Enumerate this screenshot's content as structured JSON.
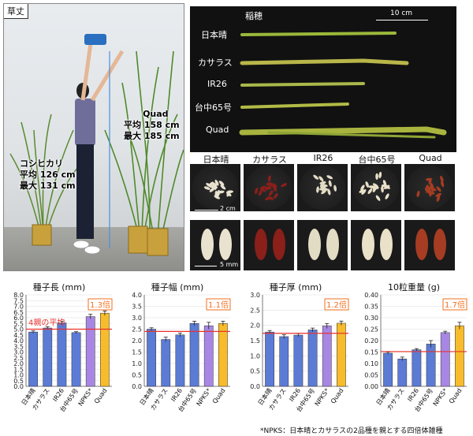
{
  "panels": {
    "plant_height": {
      "label": "草丈",
      "quad": {
        "name": "Quad",
        "avg": "平均 158 cm",
        "max": "最大 185 cm"
      },
      "koshihikari": {
        "name": "コシヒカリ",
        "avg": "平均 126 cm",
        "max": "最大 131 cm"
      }
    },
    "panicle": {
      "label": "稲穂",
      "scale": "10 cm",
      "varieties": [
        "日本晴",
        "カサラス",
        "IR26",
        "台中65号",
        "Quad"
      ]
    },
    "seeds": {
      "titles": [
        "日本晴",
        "カサラス",
        "IR26",
        "台中65号",
        "Quad"
      ],
      "scale_top": "2 cm",
      "scale_bottom": "5 mm",
      "colors": [
        "#e8e2cf",
        "#8b1f1a",
        "#e2dcc4",
        "#e9e1c8",
        "#a63c22"
      ]
    }
  },
  "chart_data": [
    {
      "type": "bar",
      "title": "種子長 (mm)",
      "categories": [
        "日本晴",
        "カサラス",
        "IR26",
        "台中65号",
        "NPKS*",
        "Quad"
      ],
      "values": [
        4.75,
        5.1,
        5.55,
        4.7,
        6.1,
        6.4
      ],
      "errors": [
        0.1,
        0.12,
        0.15,
        0.08,
        0.2,
        0.2
      ],
      "ylim": [
        0.0,
        8.0
      ],
      "yticks": [
        "0.0",
        "0.5",
        "1.0",
        "1.5",
        "2.0",
        "2.5",
        "3.0",
        "3.5",
        "4.0",
        "4.5",
        "5.0",
        "5.5",
        "6.0",
        "6.5",
        "7.0",
        "7.5",
        "8.0"
      ],
      "parent_avg": 5.0,
      "ratio": "1.3倍",
      "annotation": "4親の平均"
    },
    {
      "type": "bar",
      "title": "種子幅 (mm)",
      "categories": [
        "日本晴",
        "カサラス",
        "IR26",
        "台中65号",
        "NPKS*",
        "Quad"
      ],
      "values": [
        2.5,
        2.05,
        2.25,
        2.75,
        2.65,
        2.75
      ],
      "errors": [
        0.06,
        0.1,
        0.08,
        0.1,
        0.15,
        0.1
      ],
      "ylim": [
        0.0,
        4.0
      ],
      "yticks": [
        "0.0",
        "0.5",
        "1.0",
        "1.5",
        "2.0",
        "2.5",
        "3.0",
        "3.5",
        "4.0"
      ],
      "parent_avg": 2.4,
      "ratio": "1.1倍"
    },
    {
      "type": "bar",
      "title": "種子厚 (mm)",
      "categories": [
        "日本晴",
        "カサラス",
        "IR26",
        "台中65号",
        "NPKS*",
        "Quad"
      ],
      "values": [
        1.78,
        1.63,
        1.68,
        1.85,
        1.98,
        2.07
      ],
      "errors": [
        0.05,
        0.06,
        0.05,
        0.06,
        0.08,
        0.07
      ],
      "ylim": [
        0.0,
        3.0
      ],
      "yticks": [
        "0.0",
        "0.5",
        "1.0",
        "1.5",
        "2.0",
        "2.5",
        "3.0"
      ],
      "parent_avg": 1.74,
      "ratio": "1.2倍"
    },
    {
      "type": "bar",
      "title": "10粒重量 (g)",
      "categories": [
        "日本晴",
        "カサラス",
        "IR26",
        "台中65号",
        "NPKS*",
        "Quad"
      ],
      "values": [
        0.145,
        0.12,
        0.16,
        0.185,
        0.235,
        0.265
      ],
      "errors": [
        0.005,
        0.008,
        0.005,
        0.015,
        0.006,
        0.015
      ],
      "ylim": [
        0.0,
        0.4
      ],
      "yticks": [
        "0.00",
        "0.05",
        "0.10",
        "0.15",
        "0.20",
        "0.25",
        "0.30",
        "0.35",
        "0.40"
      ],
      "parent_avg": 0.152,
      "ratio": "1.7倍"
    }
  ],
  "styles": {
    "bar_blue": "#5b7bd5",
    "bar_purple": "#a787e3",
    "bar_gold": "#f6bc2c",
    "avg_line": "#e8322f",
    "ratio_color": "#f36f1f"
  },
  "footnote": "*NPKS：日本晴とカサラスの2品種を親とする四倍体雑種"
}
